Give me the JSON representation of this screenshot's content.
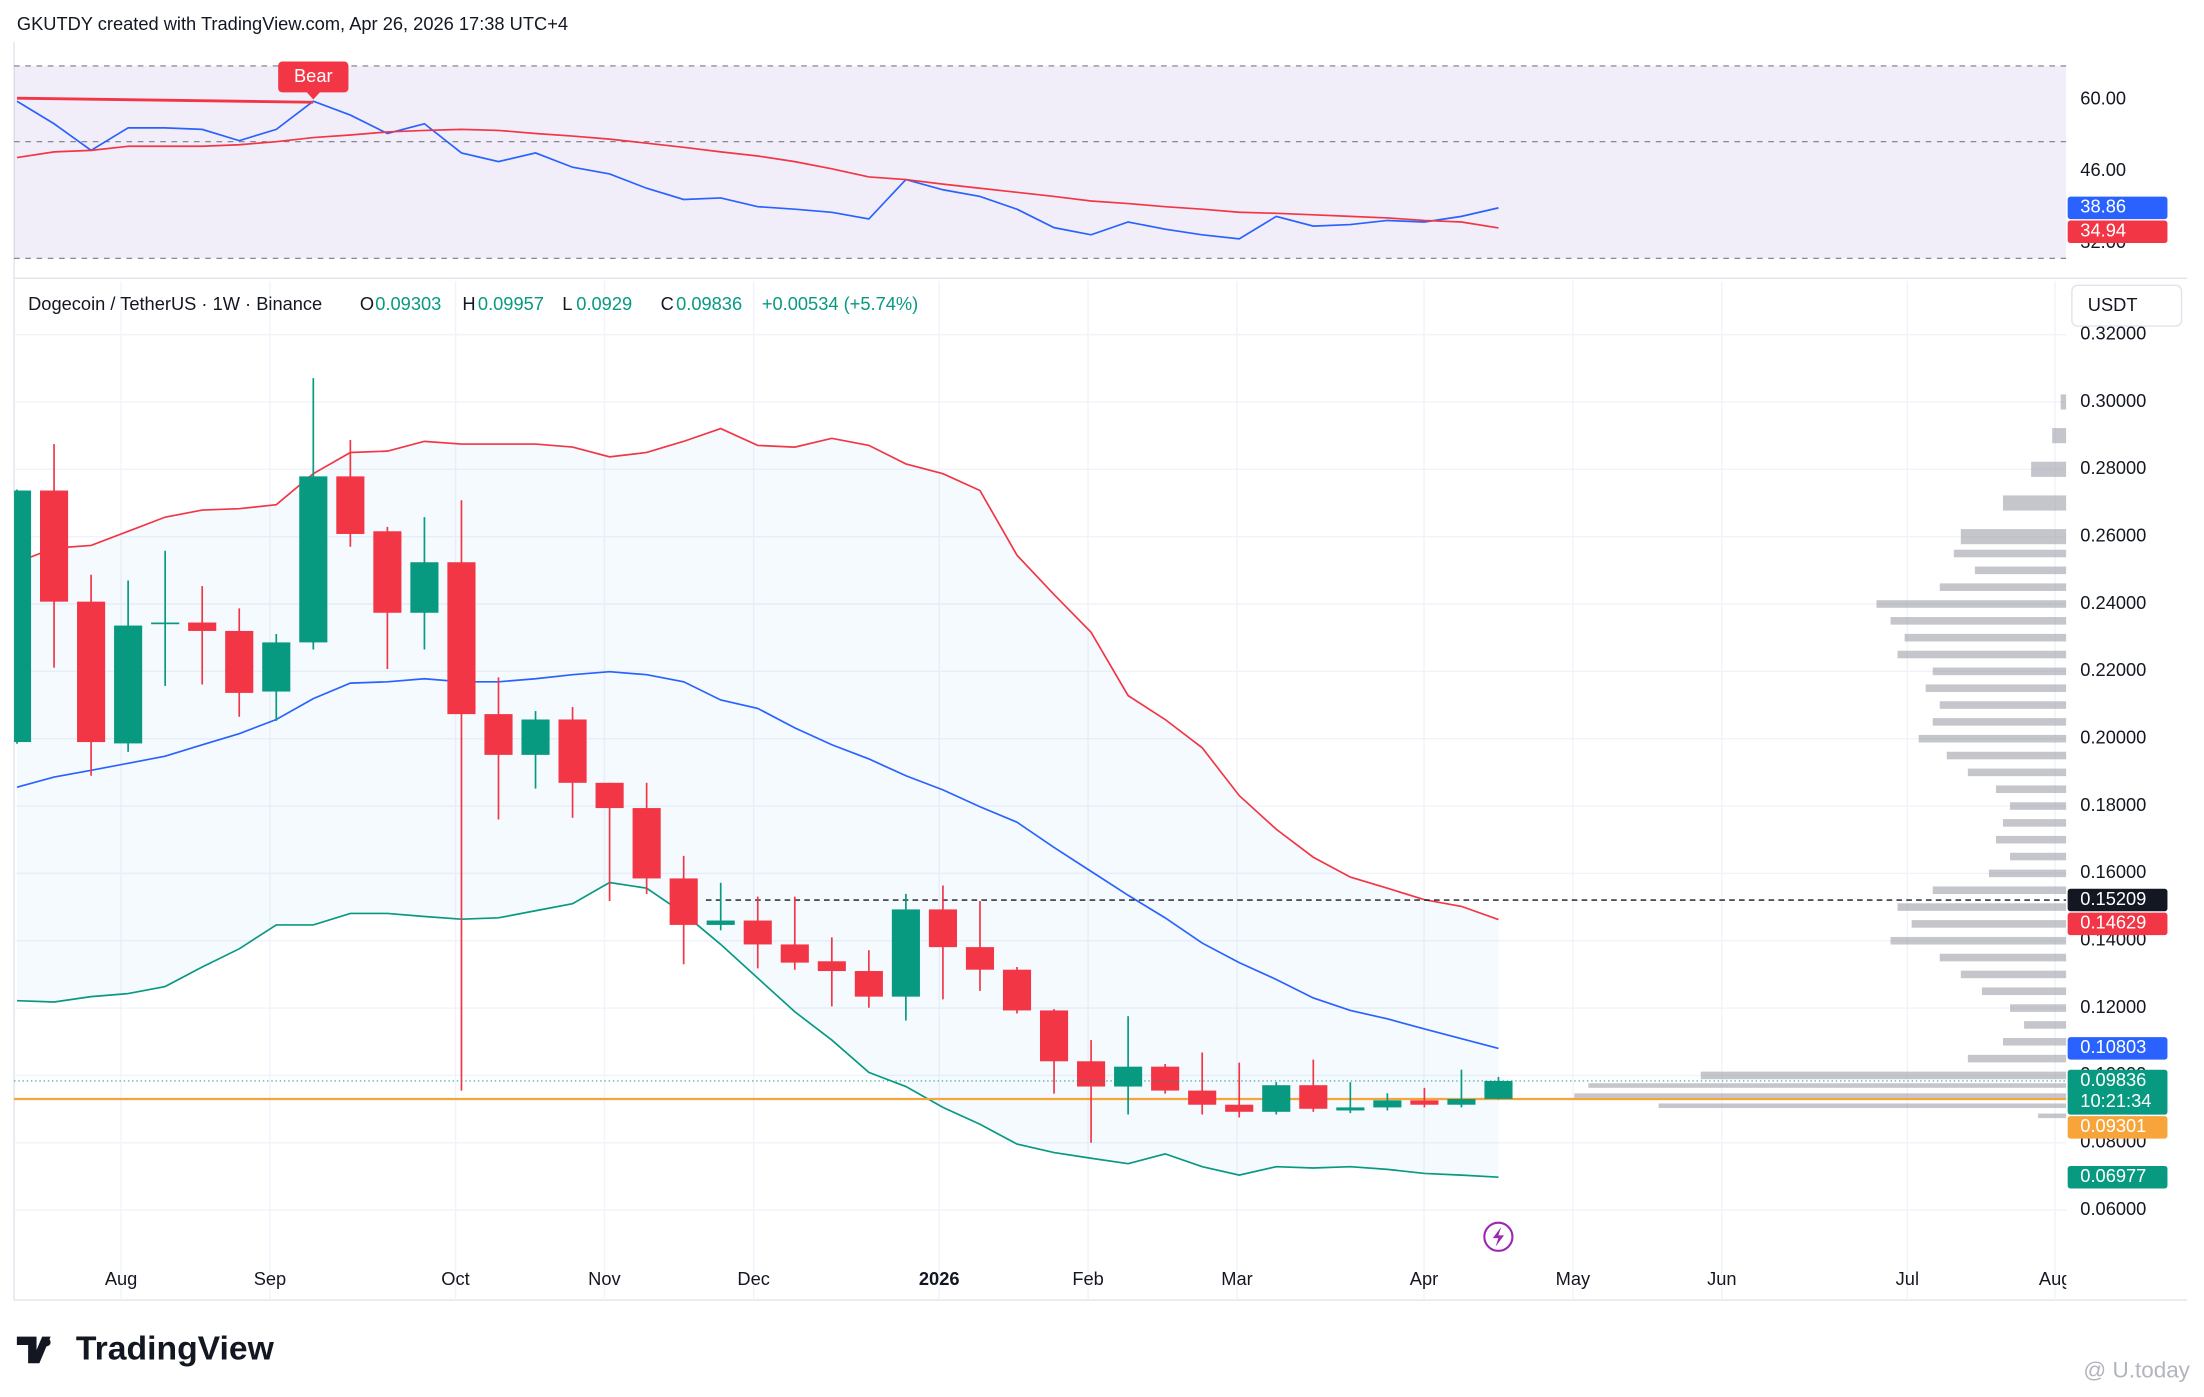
{
  "header": {
    "title": "GKUTDY created with TradingView.com, Apr 26, 2026 17:38 UTC+4",
    "logo": "TradingView",
    "watermark": "@ U.today"
  },
  "chart_data": [
    {
      "type": "candlestick",
      "title": "Dogecoin / TetherUS · 1W · Binance",
      "ohlc_labels": [
        "O",
        "H",
        "L",
        "C"
      ],
      "change": "+0.00534 (+5.74%)",
      "currency": "USDT",
      "countdown": "10:21:34",
      "up_color": "#089981",
      "down_color": "#f23645",
      "xlim": [
        -0.08,
        55.33
      ],
      "xticks": [
        {
          "value": 2.81,
          "label": "Aug"
        },
        {
          "value": 6.83,
          "label": "Sep"
        },
        {
          "value": 11.84,
          "label": "Oct"
        },
        {
          "value": 15.86,
          "label": "Nov"
        },
        {
          "value": 19.89,
          "label": "Dec"
        },
        {
          "value": 24.9,
          "label": "2026"
        },
        {
          "value": 28.92,
          "label": "Feb"
        },
        {
          "value": 32.94,
          "label": "Mar"
        },
        {
          "value": 37.99,
          "label": "Apr"
        },
        {
          "value": 42.01,
          "label": "May"
        },
        {
          "value": 46.03,
          "label": "Jun"
        },
        {
          "value": 51.04,
          "label": "Jul"
        },
        {
          "value": 55.03,
          "label": "Aug"
        }
      ],
      "ylim": [
        0.0333,
        0.3359
      ],
      "yticks": [
        {
          "value": 0.06,
          "label": "0.06000"
        },
        {
          "value": 0.08,
          "label": "0.08000"
        },
        {
          "value": 0.1,
          "label": "0.10000"
        },
        {
          "value": 0.12,
          "label": "0.12000"
        },
        {
          "value": 0.14,
          "label": "0.14000"
        },
        {
          "value": 0.16,
          "label": "0.16000"
        },
        {
          "value": 0.18,
          "label": "0.18000"
        },
        {
          "value": 0.2,
          "label": "0.20000"
        },
        {
          "value": 0.22,
          "label": "0.22000"
        },
        {
          "value": 0.24,
          "label": "0.24000"
        },
        {
          "value": 0.26,
          "label": "0.26000"
        },
        {
          "value": 0.28,
          "label": "0.28000"
        },
        {
          "value": 0.3,
          "label": "0.30000"
        },
        {
          "value": 0.32,
          "label": "0.32000"
        }
      ],
      "grid": true,
      "candles": {
        "open": [
          0.199,
          0.2737,
          0.2407,
          0.1986,
          0.234,
          0.2345,
          0.232,
          0.214,
          0.2286,
          0.2779,
          0.2616,
          0.2374,
          0.2524,
          0.2073,
          0.1952,
          0.2057,
          0.1869,
          0.1794,
          0.1585,
          0.1447,
          0.146,
          0.1389,
          0.1339,
          0.131,
          0.1234,
          0.1493,
          0.1381,
          0.1314,
          0.1193,
          0.1042,
          0.0967,
          0.1026,
          0.0955,
          0.0913,
          0.0892,
          0.0971,
          0.0896,
          0.0905,
          0.0926,
          0.0913,
          0.09303
        ],
        "high": [
          0.274,
          0.2875,
          0.2487,
          0.247,
          0.2558,
          0.2453,
          0.2387,
          0.2311,
          0.3071,
          0.2887,
          0.2629,
          0.2658,
          0.2708,
          0.2182,
          0.2082,
          0.2094,
          0.1869,
          0.1869,
          0.1652,
          0.1572,
          0.1531,
          0.1531,
          0.141,
          0.1372,
          0.1539,
          0.1564,
          0.1518,
          0.1322,
          0.1197,
          0.1105,
          0.1176,
          0.1034,
          0.1068,
          0.1038,
          0.098,
          0.1047,
          0.098,
          0.0947,
          0.0963,
          0.1017,
          0.09957
        ],
        "low": [
          0.1985,
          0.2211,
          0.189,
          0.1961,
          0.2157,
          0.2161,
          0.2065,
          0.2053,
          0.2265,
          0.257,
          0.2207,
          0.2265,
          0.0955,
          0.176,
          0.1852,
          0.1765,
          0.1518,
          0.1539,
          0.133,
          0.1431,
          0.1318,
          0.1314,
          0.1205,
          0.1201,
          0.1163,
          0.1226,
          0.1251,
          0.1184,
          0.0946,
          0.08,
          0.0884,
          0.0946,
          0.0884,
          0.0875,
          0.0884,
          0.0892,
          0.0888,
          0.0896,
          0.0905,
          0.0905,
          0.0929
        ],
        "close": [
          0.2737,
          0.2407,
          0.199,
          0.2336,
          0.2345,
          0.232,
          0.2136,
          0.2286,
          0.2779,
          0.2608,
          0.2374,
          0.2524,
          0.2073,
          0.1952,
          0.2057,
          0.1869,
          0.1794,
          0.1585,
          0.1447,
          0.146,
          0.1389,
          0.1335,
          0.131,
          0.1234,
          0.1493,
          0.1381,
          0.1314,
          0.1193,
          0.1042,
          0.0967,
          0.1026,
          0.0955,
          0.0913,
          0.0892,
          0.0971,
          0.0901,
          0.0905,
          0.0926,
          0.0913,
          0.093,
          0.09836
        ]
      },
      "bollinger": {
        "upper": [
          0.2524,
          0.2566,
          0.2574,
          0.2616,
          0.2658,
          0.2679,
          0.2683,
          0.2695,
          0.2787,
          0.285,
          0.2854,
          0.2883,
          0.2875,
          0.2875,
          0.2875,
          0.2866,
          0.2837,
          0.285,
          0.2883,
          0.2921,
          0.2871,
          0.2866,
          0.2892,
          0.2871,
          0.2816,
          0.2787,
          0.2737,
          0.2545,
          0.2428,
          0.2316,
          0.2128,
          0.2057,
          0.1973,
          0.1831,
          0.1731,
          0.1648,
          0.1589,
          0.1556,
          0.1522,
          0.1502,
          0.14629
        ],
        "basis": [
          0.1856,
          0.1886,
          0.1906,
          0.1927,
          0.1948,
          0.1982,
          0.2015,
          0.2057,
          0.2119,
          0.2165,
          0.2169,
          0.2178,
          0.2169,
          0.2169,
          0.2178,
          0.219,
          0.2199,
          0.219,
          0.2169,
          0.2115,
          0.209,
          0.2032,
          0.1982,
          0.194,
          0.189,
          0.1848,
          0.1798,
          0.1752,
          0.1677,
          0.1606,
          0.1535,
          0.1468,
          0.1393,
          0.1335,
          0.1285,
          0.123,
          0.1193,
          0.1168,
          0.1138,
          0.1109,
          0.10803
        ],
        "lower": [
          0.1222,
          0.1218,
          0.1234,
          0.1243,
          0.1264,
          0.1322,
          0.1376,
          0.1447,
          0.1447,
          0.1481,
          0.1481,
          0.1472,
          0.1464,
          0.1468,
          0.1489,
          0.151,
          0.1573,
          0.1556,
          0.1481,
          0.1389,
          0.1289,
          0.1189,
          0.1105,
          0.1009,
          0.0967,
          0.0905,
          0.0855,
          0.0796,
          0.0771,
          0.0754,
          0.0738,
          0.0767,
          0.0729,
          0.0704,
          0.0729,
          0.0725,
          0.0729,
          0.0721,
          0.0709,
          0.0704,
          0.06977
        ],
        "upper_color": "#f23645",
        "basis_color": "#2962ff",
        "lower_color": "#089981"
      },
      "lines": [
        {
          "value": 0.15209,
          "color": "#131722",
          "dashed": true,
          "from": 18.6
        },
        {
          "value": 0.09301,
          "color": "#f7a53a"
        }
      ],
      "volume_profile": {
        "prices": [
          0.088,
          0.091,
          0.094,
          0.097,
          0.1,
          0.105,
          0.11,
          0.115,
          0.12,
          0.125,
          0.13,
          0.135,
          0.14,
          0.145,
          0.15,
          0.155,
          0.16,
          0.165,
          0.17,
          0.175,
          0.18,
          0.185,
          0.19,
          0.195,
          0.2,
          0.205,
          0.21,
          0.215,
          0.22,
          0.225,
          0.23,
          0.235,
          0.24,
          0.245,
          0.25,
          0.255,
          0.26,
          0.27,
          0.28,
          0.29,
          0.3
        ],
        "volumes": [
          20,
          290,
          350,
          340,
          260,
          70,
          45,
          30,
          40,
          60,
          75,
          90,
          125,
          110,
          120,
          95,
          55,
          40,
          50,
          45,
          40,
          50,
          70,
          85,
          105,
          95,
          90,
          100,
          95,
          120,
          115,
          125,
          135,
          90,
          65,
          80,
          75,
          45,
          25,
          10,
          4
        ],
        "color": "#9598a1"
      }
    },
    {
      "type": "line",
      "ylim": [
        27.3,
        68.5
      ],
      "yticks": [
        {
          "value": 32,
          "label": "32.00"
        },
        {
          "value": 46,
          "label": "46.00"
        },
        {
          "value": 60,
          "label": "60.00"
        }
      ],
      "bands": [
        66.6,
        51.8,
        29.0
      ],
      "band_fill": "#7e57c2",
      "series": [
        {
          "color": "#2962ff",
          "values": [
            59.7,
            55.3,
            50.1,
            54.5,
            54.5,
            54.2,
            52.0,
            54.2,
            59.7,
            57.0,
            53.4,
            55.3,
            49.6,
            47.9,
            49.6,
            46.8,
            45.5,
            42.7,
            40.5,
            40.8,
            39.1,
            38.6,
            38.0,
            36.7,
            44.4,
            42.4,
            41.1,
            38.6,
            35.0,
            33.6,
            36.1,
            34.7,
            33.6,
            32.8,
            37.2,
            35.3,
            35.6,
            36.4,
            36.1,
            37.2,
            38.86
          ]
        },
        {
          "color": "#f23645",
          "values": [
            48.7,
            49.8,
            50.1,
            50.9,
            50.9,
            50.9,
            51.2,
            51.8,
            52.6,
            53.1,
            53.7,
            54.0,
            54.2,
            54.0,
            53.4,
            52.9,
            52.3,
            51.5,
            50.7,
            49.8,
            49.0,
            47.9,
            46.5,
            44.9,
            44.4,
            43.5,
            42.7,
            41.9,
            41.1,
            40.2,
            39.7,
            39.1,
            38.6,
            38.0,
            37.8,
            37.5,
            37.2,
            36.9,
            36.4,
            36.1,
            34.94
          ]
        }
      ],
      "divergence": {
        "label": "Bear",
        "x": [
          0,
          8
        ],
        "values": [
          60.3,
          59.5
        ],
        "color": "#f23645"
      }
    }
  ]
}
